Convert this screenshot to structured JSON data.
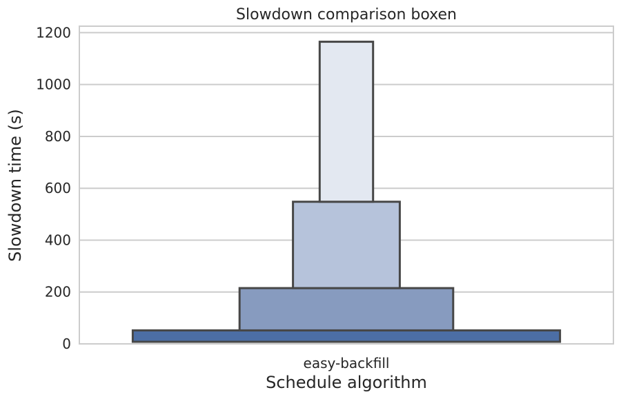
{
  "chart_data": {
    "type": "boxen",
    "title": "Slowdown comparison boxen",
    "xlabel": "Schedule algorithm",
    "ylabel": "Slowdown time (s)",
    "categories": [
      "easy-backfill"
    ],
    "ylim": [
      0,
      1225
    ],
    "yticks": [
      0,
      200,
      400,
      600,
      800,
      1000,
      1200
    ],
    "grid": true,
    "boxes": [
      {
        "category": "easy-backfill",
        "level": 1,
        "low": 8,
        "high": 52,
        "color": "#4c6ea5"
      },
      {
        "category": "easy-backfill",
        "level": 2,
        "low": 52,
        "high": 215,
        "color": "#879bbf"
      },
      {
        "category": "easy-backfill",
        "level": 3,
        "low": 215,
        "high": 548,
        "color": "#b6c3db"
      },
      {
        "category": "easy-backfill",
        "level": 4,
        "low": 548,
        "high": 1165,
        "color": "#e3e8f1"
      }
    ],
    "colors": {
      "edge": "#474747",
      "grid": "#cccccc",
      "frame": "#cccccc"
    }
  }
}
